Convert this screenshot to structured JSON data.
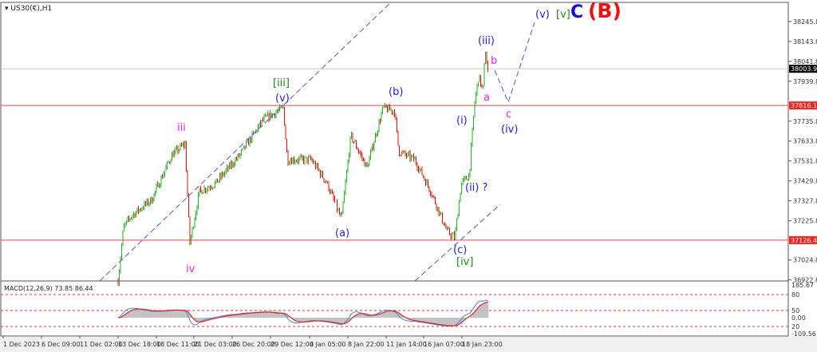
{
  "symbol_title": "US30(€),H1",
  "colors": {
    "bull": "#22b222",
    "bear": "#e01010",
    "wave_blue": "#2020e0",
    "wave_magenta": "#ee22ee",
    "wave_green": "#1a8a1a",
    "wave_red": "#ee1111",
    "level_line": "#ff4040",
    "channel": "#4a5ae0",
    "macd_line": "#3a8ae8",
    "signal_line": "#ee2020",
    "histogram": "#c0c0c0"
  },
  "chart_data": {
    "type": "candlestick",
    "timeframe": "H1",
    "ylim": [
      36922.8,
      38245.8
    ],
    "price_ticks": [
      "38245.8",
      "38143.8",
      "38041.8",
      "37939.8",
      "37735.8",
      "37633.8",
      "37531.8",
      "37429.8",
      "37327.8",
      "37225.8",
      "37024.8",
      "36922.8"
    ],
    "time_ticks": [
      "1 Dec 2023",
      "6 Dec 09:00",
      "11 Dec 02:00",
      "13 Dec 18:00",
      "18 Dec 11:00",
      "21 Dec 03:00",
      "26 Dec 20:00",
      "29 Dec 12:00",
      "4 Jan 05:00",
      "8 Jan 22:00",
      "11 Jan 14:00",
      "16 Jan 07:00",
      "18 Jan 23:00"
    ],
    "price_path": [
      [
        "2023-12-13T18:00",
        36918
      ],
      [
        "2023-12-14T10:00",
        37191
      ],
      [
        "2023-12-15T10:00",
        37252
      ],
      [
        "2023-12-17T21:00",
        37334
      ],
      [
        "2023-12-19T13:00",
        37560
      ],
      [
        "2023-12-20T12:00",
        37621
      ],
      [
        "2023-12-20T20:00",
        37110
      ],
      [
        "2023-12-21T23:00",
        37376
      ],
      [
        "2023-12-24T08:00",
        37417
      ],
      [
        "2023-12-27T08:00",
        37560
      ],
      [
        "2023-12-29T00:00",
        37743
      ],
      [
        "2023-12-31T09:00",
        37805
      ],
      [
        "2023-12-31T23:00",
        37539
      ],
      [
        "2024-01-04T10:00",
        37539
      ],
      [
        "2024-01-06T09:00",
        37417
      ],
      [
        "2024-01-08T03:00",
        37232
      ],
      [
        "2024-01-09T03:00",
        37662
      ],
      [
        "2024-01-10T06:00",
        37498
      ],
      [
        "2024-01-11T09:00",
        37805
      ],
      [
        "2024-01-12T16:00",
        37784
      ],
      [
        "2024-01-13T04:00",
        37580
      ],
      [
        "2024-01-15T04:00",
        37539
      ],
      [
        "2024-01-16T19:00",
        37376
      ],
      [
        "2024-01-17T22:00",
        37172
      ],
      [
        "2024-01-18T11:00",
        37138
      ],
      [
        "2024-01-18T22:00",
        37417
      ],
      [
        "2024-01-19T11:00",
        37458
      ],
      [
        "2024-01-19T20:00",
        37825
      ],
      [
        "2024-01-20T03:00",
        37968
      ],
      [
        "2024-01-20T10:00",
        37887
      ],
      [
        "2024-01-20T14:00",
        38103
      ],
      [
        "2024-01-20T19:00",
        37968
      ]
    ],
    "current_price": "38003.9",
    "levels": [
      {
        "price": "37816.1",
        "color": "#ff2020"
      },
      {
        "price": "37126.4",
        "color": "#ff2020"
      }
    ],
    "macd": {
      "label": "MACD(12,26,9) 73.85 86.44",
      "scale_max": "185.67",
      "scale_min": "-109.56",
      "zero": "0.00",
      "levels": [
        "80",
        "50",
        "20"
      ]
    }
  },
  "wave_labels": {
    "w_iii_green": "[iii]",
    "w_v_blue1": "(v)",
    "w_iii_mag": "iii",
    "w_iv_mag": "iv",
    "w_a_blue": "(a)",
    "w_b_blue": "(b)",
    "w_c_blue": "(c)",
    "w_iv_green": "[iv]",
    "w_ii_blue": "(ii) ?",
    "w_i_blue": "(i)",
    "w_iii_blue": "(iii)",
    "w_b_mag": "b",
    "w_a_mag": "a",
    "w_c_mag": "c",
    "w_iv_blue": "(iv)",
    "w_v_blue2": "(v)",
    "w_v_green": "[v]",
    "w_C_blue": "C",
    "w_B_red": "(B)"
  }
}
